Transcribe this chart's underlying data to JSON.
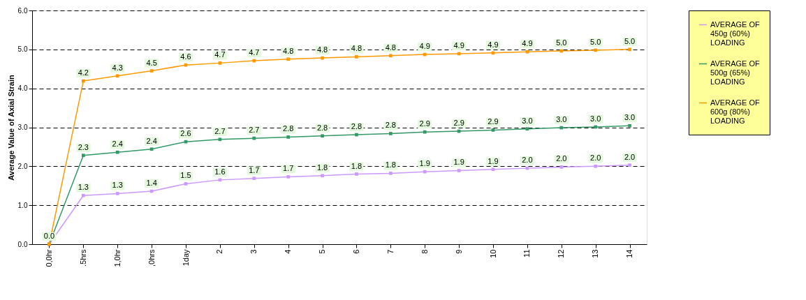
{
  "chart_data": {
    "type": "line",
    "ylabel": "Average Value of Axial Strain",
    "categories": [
      "0,0hr",
      ".5hrs",
      "1,0hr",
      ",0hrs",
      "1day",
      "2",
      "3",
      "4",
      "5",
      "6",
      "7",
      "8",
      "9",
      "10",
      "11",
      "12",
      "13",
      "14"
    ],
    "series": [
      {
        "name": "AVERAGE OF 450g (60%) LOADING",
        "color": "#cc99ff",
        "values": [
          0,
          1.25,
          1.3,
          1.36,
          1.55,
          1.65,
          1.69,
          1.73,
          1.76,
          1.8,
          1.82,
          1.86,
          1.89,
          1.92,
          1.95,
          1.98,
          2.0,
          2.03
        ],
        "value_labels": [
          "0.0",
          "1.3",
          "1.3",
          "1.4",
          "1.5",
          "1.6",
          "1.7",
          "1.7",
          "1.8",
          "1.8",
          "1.8",
          "1.9",
          "1.9",
          "1.9",
          "2.0",
          "2.0",
          "2.0",
          "2.0"
        ]
      },
      {
        "name": "AVERAGE OF 500g (65%) LOADING",
        "color": "#339966",
        "values": [
          0,
          2.28,
          2.36,
          2.44,
          2.63,
          2.69,
          2.72,
          2.75,
          2.78,
          2.81,
          2.84,
          2.88,
          2.9,
          2.93,
          2.96,
          2.99,
          3.01,
          3.04
        ],
        "value_labels": [
          null,
          "2.3",
          "2.4",
          "2.4",
          "2.6",
          "2.7",
          "2.7",
          "2.8",
          "2.8",
          "2.8",
          "2.8",
          "2.9",
          "2.9",
          "2.9",
          "3.0",
          "3.0",
          "3.0",
          "3.0"
        ]
      },
      {
        "name": "AVERAGE OF 600g (80%) LOADING",
        "color": "#ff9900",
        "values": [
          0,
          4.19,
          4.32,
          4.45,
          4.6,
          4.65,
          4.71,
          4.75,
          4.78,
          4.81,
          4.84,
          4.87,
          4.89,
          4.91,
          4.94,
          4.96,
          4.98,
          5.0
        ],
        "value_labels": [
          null,
          "4.2",
          "4.3",
          "4.5",
          "4.6",
          "4.7",
          "4.7",
          "4.8",
          "4.8",
          "4.8",
          "4.8",
          "4.9",
          "4.9",
          "4.9",
          "4.9",
          "5.0",
          "5.0",
          "5.0"
        ]
      }
    ],
    "ylim": [
      0,
      6
    ],
    "yticks": [
      {
        "value": 0,
        "label": "0.0"
      },
      {
        "value": 1,
        "label": "1.0"
      },
      {
        "value": 2,
        "label": "2.0"
      },
      {
        "value": 3,
        "label": "3.0"
      },
      {
        "value": 4,
        "label": "4.0"
      },
      {
        "value": 5,
        "label": "5.0"
      },
      {
        "value": 6,
        "label": "6.0"
      }
    ],
    "grid": "y",
    "legend": "right",
    "marker": "square",
    "line_style": "solid"
  }
}
